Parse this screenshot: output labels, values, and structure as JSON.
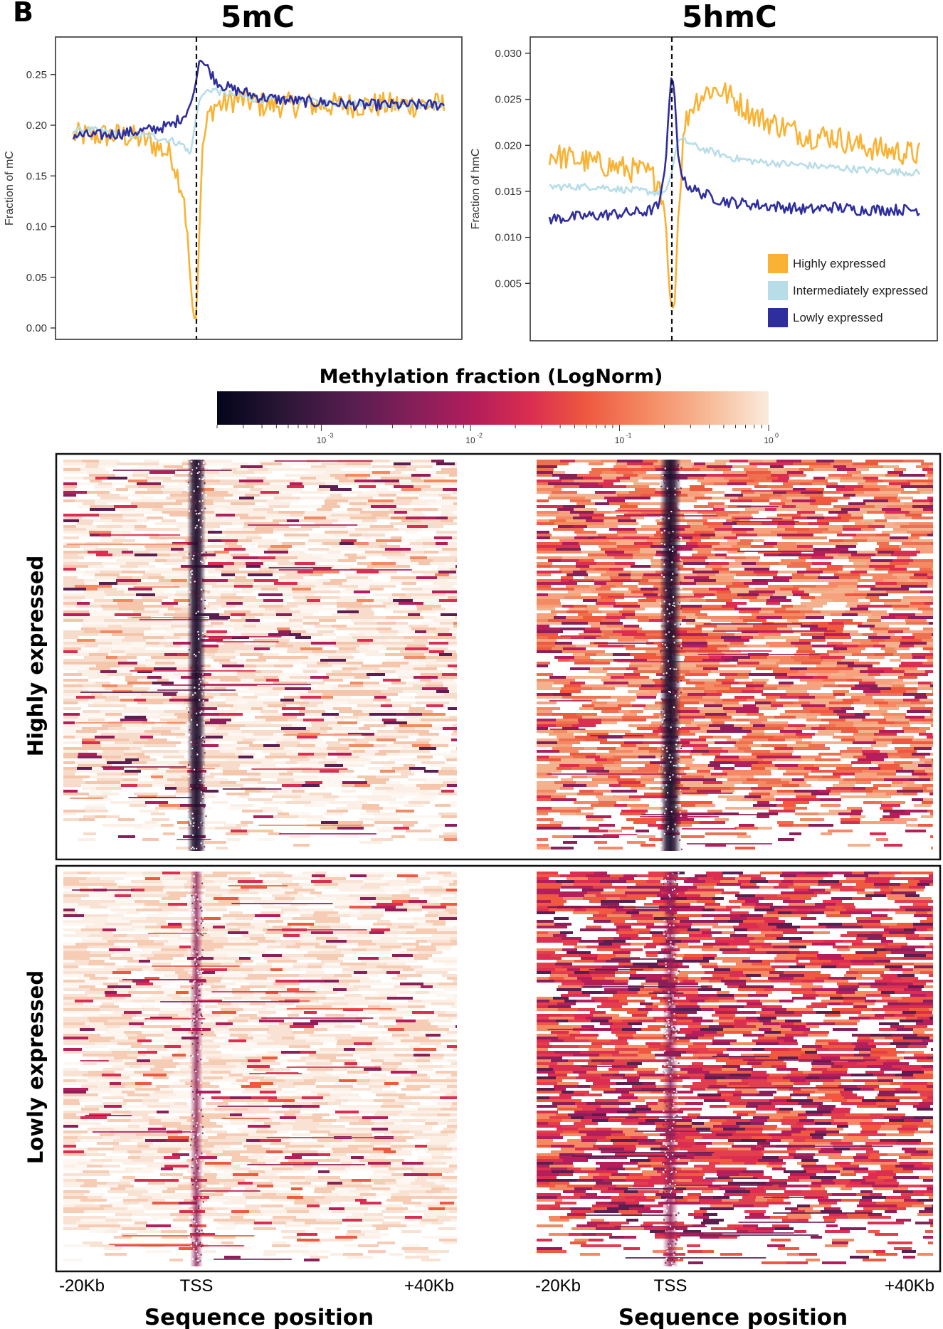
{
  "panel_label": "B",
  "colors": {
    "highly": "#F9B233",
    "intermediate": "#B7DDE8",
    "lowly": "#2E2E9E"
  },
  "colorbar": {
    "title": "Methylation fraction (LogNorm)",
    "colormap": "rocket",
    "scale": "log",
    "range": [
      0.0002,
      1
    ],
    "ticks": [
      {
        "base": "10",
        "exp": "-3",
        "value": 0.001
      },
      {
        "base": "10",
        "exp": "-2",
        "value": 0.01
      },
      {
        "base": "10",
        "exp": "-1",
        "value": 0.1
      },
      {
        "base": "10",
        "exp": "0",
        "value": 1
      }
    ]
  },
  "heatmap_rows": {
    "top": "Highly expressed",
    "bottom": "Lowly expressed"
  },
  "x_axis": {
    "ticks": [
      "-20Kb",
      "TSS",
      "+40Kb"
    ],
    "label": "Sequence position"
  },
  "chart_data": [
    {
      "type": "line",
      "title": "5mC",
      "xlabel": "",
      "ylabel": "Fraction of mC",
      "ylim": [
        0.0,
        0.28
      ],
      "yticks": [
        "0.00",
        "0.05",
        "0.10",
        "0.15",
        "0.20",
        "0.25"
      ],
      "x": [
        -20,
        -16,
        -12,
        -8,
        -4,
        -2,
        -1,
        -0.5,
        0,
        0.5,
        1,
        2,
        3,
        4,
        6,
        8,
        10,
        14,
        18,
        22,
        26,
        30,
        34,
        40
      ],
      "series": [
        {
          "name": "Highly expressed",
          "values": [
            0.19,
            0.19,
            0.19,
            0.185,
            0.17,
            0.13,
            0.05,
            0.01,
            0.01,
            0.1,
            0.18,
            0.21,
            0.22,
            0.22,
            0.225,
            0.225,
            0.22,
            0.22,
            0.22,
            0.22,
            0.22,
            0.22,
            0.22,
            0.22
          ]
        },
        {
          "name": "Intermediately expressed",
          "values": [
            0.195,
            0.195,
            0.19,
            0.19,
            0.185,
            0.18,
            0.17,
            0.19,
            0.21,
            0.225,
            0.23,
            0.235,
            0.235,
            0.232,
            0.23,
            0.228,
            0.225,
            0.225,
            0.224,
            0.222,
            0.222,
            0.221,
            0.22,
            0.22
          ]
        },
        {
          "name": "Lowly expressed",
          "values": [
            0.19,
            0.19,
            0.192,
            0.195,
            0.2,
            0.21,
            0.22,
            0.23,
            0.245,
            0.265,
            0.262,
            0.255,
            0.245,
            0.24,
            0.235,
            0.232,
            0.228,
            0.225,
            0.223,
            0.222,
            0.22,
            0.22,
            0.22,
            0.22
          ]
        }
      ]
    },
    {
      "type": "line",
      "title": "5hmC",
      "xlabel": "",
      "ylabel": "Fraction of hmC",
      "ylim": [
        0.0,
        0.031
      ],
      "yticks": [
        "0.005",
        "0.010",
        "0.015",
        "0.020",
        "0.025",
        "0.030"
      ],
      "legend": [
        "Highly expressed",
        "Intermediately expressed",
        "Lowly expressed"
      ],
      "x": [
        -20,
        -16,
        -12,
        -8,
        -4,
        -2,
        -1,
        -0.5,
        0,
        0.5,
        1,
        2,
        3,
        4,
        6,
        8,
        10,
        14,
        18,
        22,
        26,
        30,
        34,
        40
      ],
      "series": [
        {
          "name": "Highly expressed",
          "values": [
            0.019,
            0.0185,
            0.018,
            0.0175,
            0.017,
            0.016,
            0.012,
            0.005,
            0.002,
            0.003,
            0.012,
            0.022,
            0.024,
            0.025,
            0.026,
            0.026,
            0.025,
            0.023,
            0.022,
            0.021,
            0.021,
            0.02,
            0.0195,
            0.019
          ]
        },
        {
          "name": "Intermediately expressed",
          "values": [
            0.0155,
            0.0155,
            0.0155,
            0.0152,
            0.015,
            0.0148,
            0.015,
            0.016,
            0.017,
            0.019,
            0.0205,
            0.0205,
            0.0202,
            0.0198,
            0.0194,
            0.019,
            0.0186,
            0.0182,
            0.018,
            0.0178,
            0.0176,
            0.0174,
            0.0172,
            0.017
          ]
        },
        {
          "name": "Lowly expressed",
          "values": [
            0.012,
            0.0122,
            0.0124,
            0.0126,
            0.0128,
            0.0135,
            0.018,
            0.024,
            0.028,
            0.025,
            0.019,
            0.016,
            0.0155,
            0.015,
            0.0145,
            0.014,
            0.0138,
            0.0135,
            0.0133,
            0.013,
            0.0133,
            0.013,
            0.013,
            0.013
          ]
        }
      ]
    }
  ]
}
